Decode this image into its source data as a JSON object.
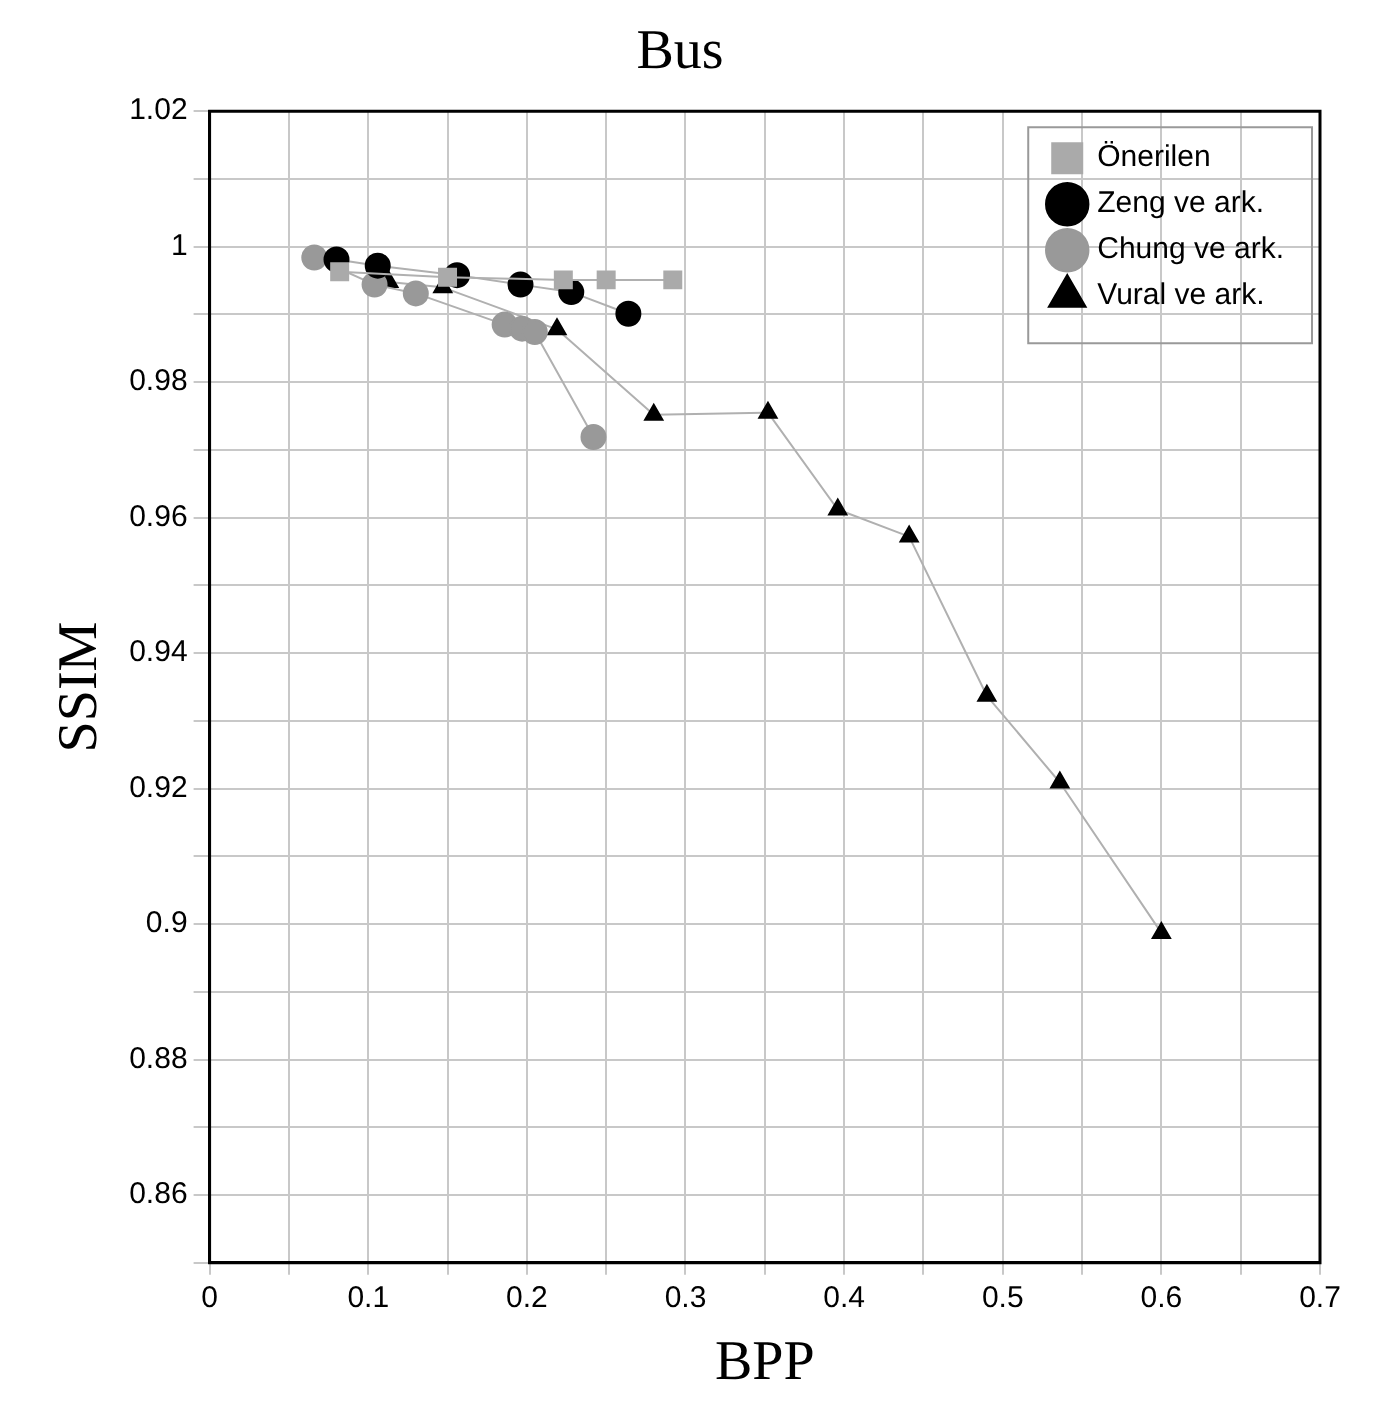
{
  "chart_data": {
    "type": "line",
    "title": "Bus",
    "xlabel": "BPP",
    "ylabel": "SSIM",
    "xlim": [
      0,
      0.7
    ],
    "xticks": [
      0,
      {
        "value": 0.05,
        "label": null
      },
      0.1,
      {
        "value": 0.15,
        "label": null
      },
      0.2,
      {
        "value": 0.25,
        "label": null
      },
      0.3,
      {
        "value": 0.35,
        "label": null
      },
      0.4,
      {
        "value": 0.45,
        "label": null
      },
      0.5,
      {
        "value": 0.55,
        "label": null
      },
      0.6,
      {
        "value": 0.65,
        "label": null
      },
      0.7
    ],
    "ylim": [
      0.85,
      1.02
    ],
    "yticks": [
      {
        "value": 0.85,
        "label": null
      },
      0.86,
      {
        "value": 0.87,
        "label": null
      },
      0.88,
      {
        "value": 0.89,
        "label": null
      },
      0.9,
      {
        "value": 0.91,
        "label": null
      },
      0.92,
      {
        "value": 0.93,
        "label": null
      },
      0.94,
      {
        "value": 0.95,
        "label": null
      },
      0.96,
      {
        "value": 0.97,
        "label": null
      },
      0.98,
      {
        "value": 0.99,
        "label": null
      },
      1,
      {
        "value": 1.01,
        "label": null
      },
      1.02
    ],
    "grid": true,
    "legend": "top right",
    "line_style": "solid",
    "series": [
      {
        "name": "Vural ve ark.",
        "color": "#000000",
        "marker": "triangle",
        "x": [
          0.113,
          0.147,
          0.219,
          0.28,
          0.352,
          0.396,
          0.441,
          0.49,
          0.536,
          0.6
        ],
        "values": [
          0.9948,
          0.994,
          0.9878,
          0.9752,
          0.9755,
          0.9612,
          0.9572,
          0.9337,
          0.9209,
          0.8987
        ]
      },
      {
        "name": "Chung ve ark.",
        "color": "#999999",
        "marker": "circle",
        "x": [
          0.066,
          0.104,
          0.13,
          0.186,
          0.197,
          0.205,
          0.242
        ],
        "values": [
          0.9984,
          0.9944,
          0.9931,
          0.9885,
          0.9879,
          0.9874,
          0.9719
        ]
      },
      {
        "name": "Zeng ve ark.",
        "color": "#000000",
        "marker": "circle",
        "x": [
          0.08,
          0.106,
          0.156,
          0.196,
          0.228,
          0.264
        ],
        "values": [
          0.9981,
          0.9972,
          0.9958,
          0.9944,
          0.9933,
          0.9901
        ]
      },
      {
        "name": "Önerilen",
        "color": "#aaaaaa",
        "marker": "square",
        "x": [
          0.082,
          0.15,
          0.223,
          0.25,
          0.292
        ],
        "values": [
          0.9963,
          0.9955,
          0.9951,
          0.9951,
          0.9951
        ]
      }
    ]
  }
}
